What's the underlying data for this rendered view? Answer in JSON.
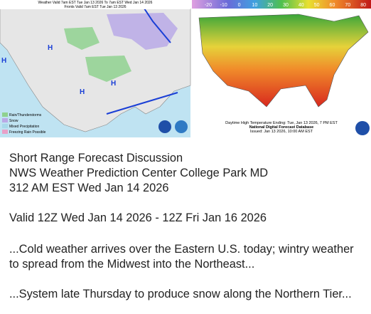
{
  "weather_map": {
    "title_lines": [
      "Weather Valid 7am EST Tue Jan 13 2026 To 7am EST Wed Jan 14 2026",
      "Fronts Valid 7am EST Tue Jan 13 2026"
    ],
    "legend": [
      {
        "label": "Rain/Thunderstorms",
        "color": "#8fd18f"
      },
      {
        "label": "Snow",
        "color": "#b9a9e6"
      },
      {
        "label": "Mixed Precipitation",
        "color": "#a8d8ea"
      },
      {
        "label": "Freezing Rain Possible",
        "color": "#e8a0c8"
      }
    ],
    "pressure_labels": [
      "H",
      "H",
      "H",
      "H"
    ]
  },
  "temperature_map": {
    "scale": [
      -20,
      -10,
      0,
      10,
      20,
      30,
      40,
      50,
      60,
      70,
      80
    ],
    "caption": [
      "Daytime High Temperature Ending: Tue, Jan 13 2026, 7 PM EST",
      "National Digital Forecast Database",
      "Issued: Jan 13 2026, 10:00 AM EST"
    ]
  },
  "discussion": {
    "title": "Short Range Forecast Discussion",
    "office": "NWS Weather Prediction Center College Park MD",
    "issued": "312 AM EST Wed Jan 14 2026",
    "valid": "Valid 12Z Wed Jan 14 2026 - 12Z Fri Jan 16 2026",
    "headlines": [
      "...Cold weather arrives over the Eastern U.S. today; wintry weather to spread from the Midwest into the Northeast...",
      "...System late Thursday to produce snow along the Northern Tier..."
    ]
  }
}
